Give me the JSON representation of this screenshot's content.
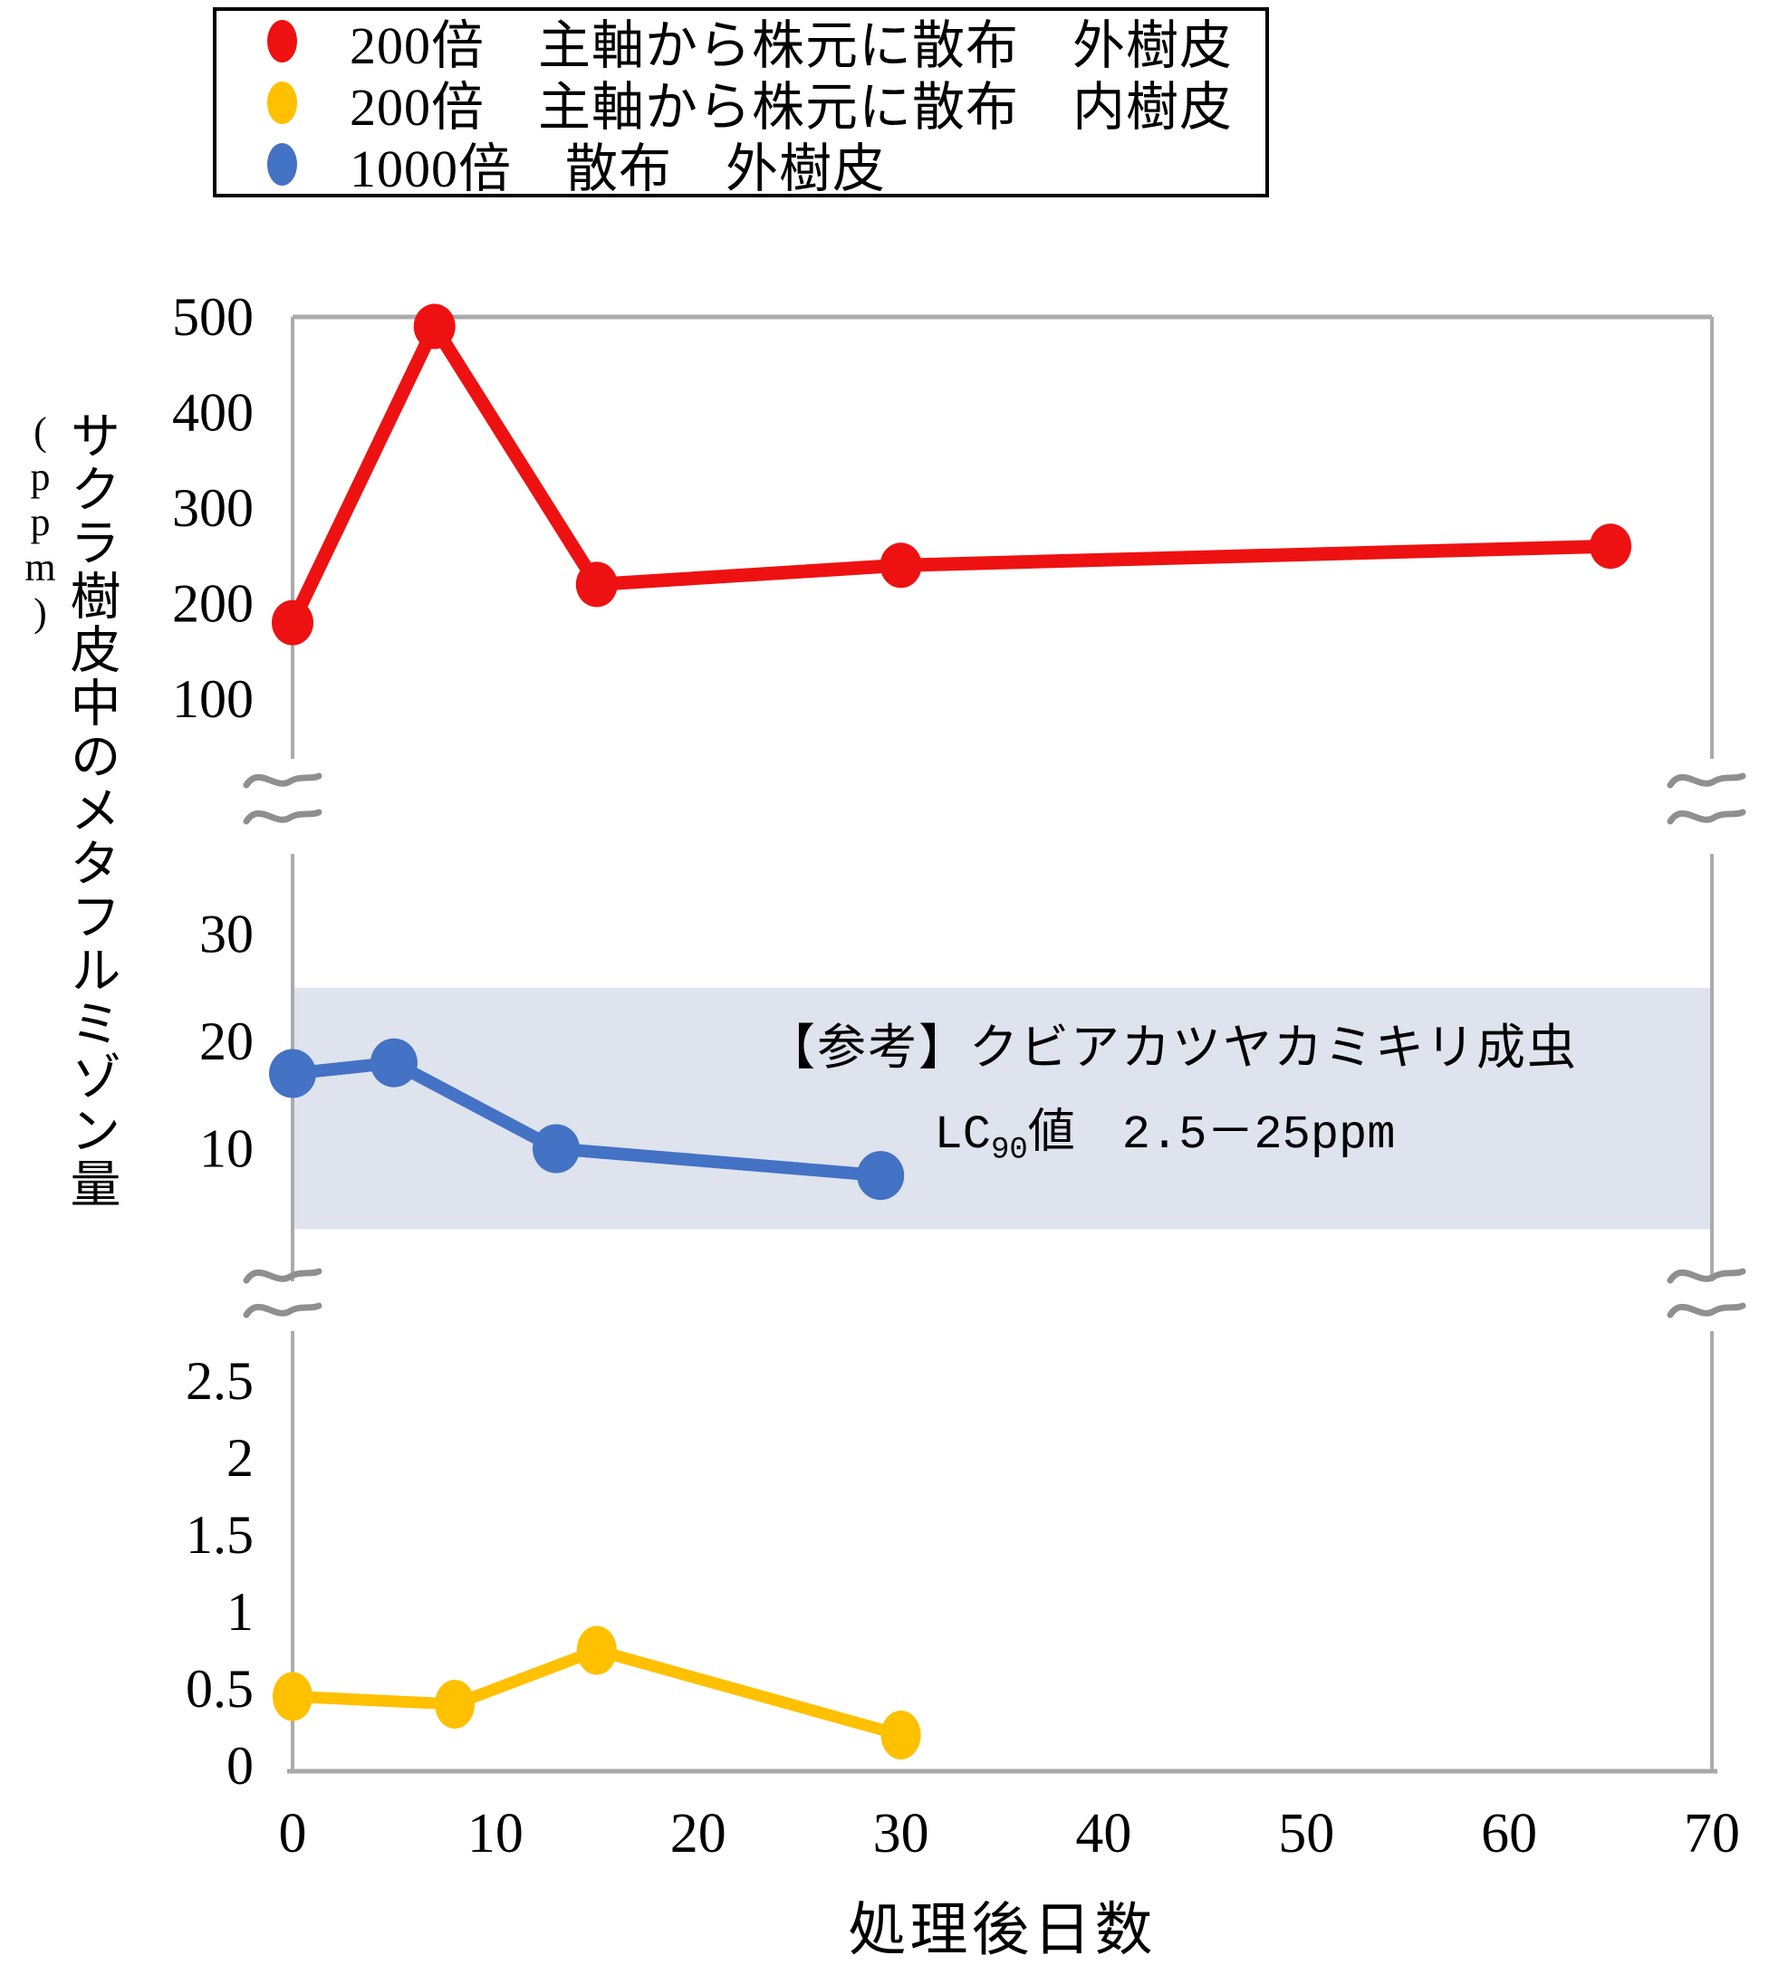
{
  "legend": {
    "items": [
      {
        "label": "200倍　主軸から株元に散布　外樹皮",
        "color": "#ee1111"
      },
      {
        "label": "200倍　主軸から株元に散布　内樹皮",
        "color": "#ffc000"
      },
      {
        "label": "1000倍　散布　外樹皮",
        "color": "#4472c4"
      }
    ]
  },
  "axis": {
    "y_title_main": "サクラ樹皮中のメタフルミゾン量",
    "y_title_unit": "(ppm)",
    "x_title": "処理後日数"
  },
  "annotation": {
    "line1": "【参考】クビアカツヤカミキリ成虫",
    "line2_prefix": "LC",
    "line2_sub": "90",
    "line2_mid": "値",
    "line2_value": "　2.5－25ppm"
  },
  "chart_data": {
    "type": "line",
    "title": "",
    "xlabel": "処理後日数",
    "ylabel": "サクラ樹皮中のメタフルミゾン量(ppm)",
    "x_range": [
      0,
      70
    ],
    "x_ticks": [
      0,
      10,
      20,
      30,
      40,
      50,
      60,
      70
    ],
    "broken_y_axis": true,
    "grid": false,
    "legend_position": "top",
    "segments": [
      {
        "name": "top",
        "ticks": [
          500,
          400,
          300,
          200,
          100
        ]
      },
      {
        "name": "middle",
        "ticks": [
          30,
          20,
          10
        ]
      },
      {
        "name": "bottom",
        "ticks": [
          2.5,
          2,
          1.5,
          1,
          0.5,
          0
        ]
      }
    ],
    "series": [
      {
        "name": "200倍 主軸から株元に散布 外樹皮",
        "color": "#ee1111",
        "segment": "top",
        "points": [
          [
            0,
            180
          ],
          [
            7,
            490
          ],
          [
            15,
            220
          ],
          [
            30,
            240
          ],
          [
            65,
            260
          ]
        ],
        "marker": {
          "rx": 23,
          "ry": 25
        },
        "line_width": 15
      },
      {
        "name": "1000倍 散布 外樹皮",
        "color": "#4472c4",
        "segment": "middle",
        "points": [
          [
            0,
            17
          ],
          [
            5,
            18
          ],
          [
            13,
            10
          ],
          [
            29,
            7.5
          ]
        ],
        "marker": {
          "rx": 26,
          "ry": 27
        },
        "line_width": 14
      },
      {
        "name": "200倍 主軸から株元に散布 内樹皮",
        "color": "#ffc000",
        "segment": "bottom",
        "points": [
          [
            0,
            0.45
          ],
          [
            8,
            0.4
          ],
          [
            15,
            0.75
          ],
          [
            30,
            0.2
          ]
        ],
        "marker": {
          "rx": 22,
          "ry": 27
        },
        "line_width": 13
      }
    ],
    "reference_band": {
      "segment": "middle",
      "from": 2.5,
      "to": 25,
      "color": "#dee3ed",
      "label": "【参考】クビアカツヤカミキリ成虫 LC90値 2.5－25ppm"
    }
  },
  "colors": {
    "axis": "#ababab",
    "break_mark": "#8f8f8f",
    "text": "#000000"
  }
}
